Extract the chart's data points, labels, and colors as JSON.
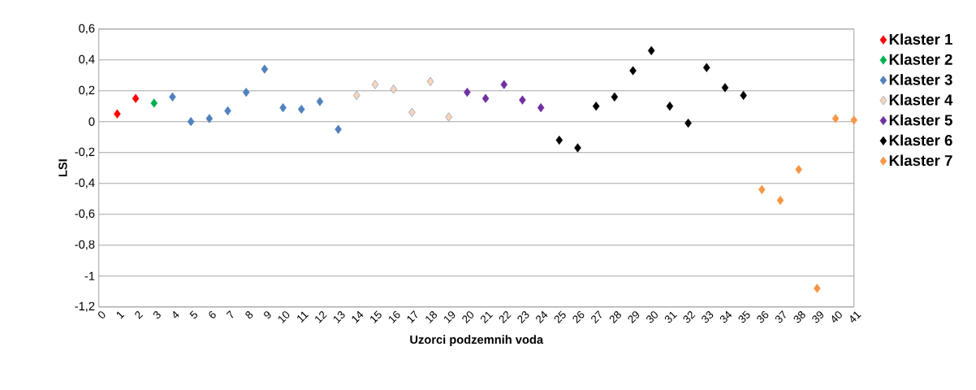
{
  "chart_data": {
    "type": "scatter",
    "xlabel": "Uzorci podzemnih voda",
    "ylabel": "LSI",
    "xlim": [
      0,
      41
    ],
    "xticks": [
      0,
      1,
      2,
      3,
      4,
      5,
      6,
      7,
      8,
      9,
      10,
      11,
      12,
      13,
      14,
      15,
      16,
      17,
      18,
      19,
      20,
      21,
      22,
      23,
      24,
      25,
      26,
      27,
      28,
      29,
      30,
      31,
      32,
      33,
      34,
      35,
      36,
      37,
      38,
      39,
      40,
      41
    ],
    "ylim": [
      -1.2,
      0.6
    ],
    "yticks": [
      {
        "value": -1.2,
        "label": "-1,2"
      },
      {
        "value": -1,
        "label": "-1"
      },
      {
        "value": -0.8,
        "label": "-0,8"
      },
      {
        "value": -0.6,
        "label": "-0,6"
      },
      {
        "value": -0.4,
        "label": "-0,4"
      },
      {
        "value": -0.2,
        "label": "-0,2"
      },
      {
        "value": 0,
        "label": "0"
      },
      {
        "value": 0.2,
        "label": "0,2"
      },
      {
        "value": 0.4,
        "label": "0,4"
      },
      {
        "value": 0.6,
        "label": "0,6"
      }
    ],
    "grid": "y",
    "legend": "top right",
    "marker": "diamond",
    "series": [
      {
        "name": "Klaster 1",
        "color": "#ff0000",
        "x": [
          1,
          2
        ],
        "values": [
          0.05,
          0.15
        ]
      },
      {
        "name": "Klaster 2",
        "color": "#00b050",
        "x": [
          3
        ],
        "values": [
          0.12
        ]
      },
      {
        "name": "Klaster 3",
        "color": "#4f81bd",
        "x": [
          4,
          5,
          6,
          7,
          8,
          9,
          10,
          11,
          12,
          13
        ],
        "values": [
          0.16,
          0.0,
          0.02,
          0.07,
          0.19,
          0.34,
          0.09,
          0.08,
          0.13,
          -0.05
        ]
      },
      {
        "name": "Klaster 4",
        "color": "#fcd5b5",
        "x": [
          14,
          15,
          16,
          17,
          18,
          19
        ],
        "values": [
          0.17,
          0.24,
          0.21,
          0.06,
          0.26,
          0.03
        ]
      },
      {
        "name": "Klaster 5",
        "color": "#7030a0",
        "x": [
          20,
          21,
          22,
          23,
          24
        ],
        "values": [
          0.19,
          0.15,
          0.24,
          0.14,
          0.09
        ]
      },
      {
        "name": "Klaster 6",
        "color": "#000000",
        "x": [
          25,
          26,
          27,
          28,
          29,
          30,
          31,
          32,
          33,
          34,
          35
        ],
        "values": [
          -0.12,
          -0.17,
          0.1,
          0.16,
          0.33,
          0.46,
          0.1,
          -0.01,
          0.35,
          0.22,
          0.17
        ]
      },
      {
        "name": "Klaster 7",
        "color": "#f79646",
        "x": [
          36,
          37,
          38,
          39,
          40,
          41
        ],
        "values": [
          -0.44,
          -0.51,
          -0.31,
          -1.08,
          0.02,
          0.01
        ]
      }
    ]
  }
}
